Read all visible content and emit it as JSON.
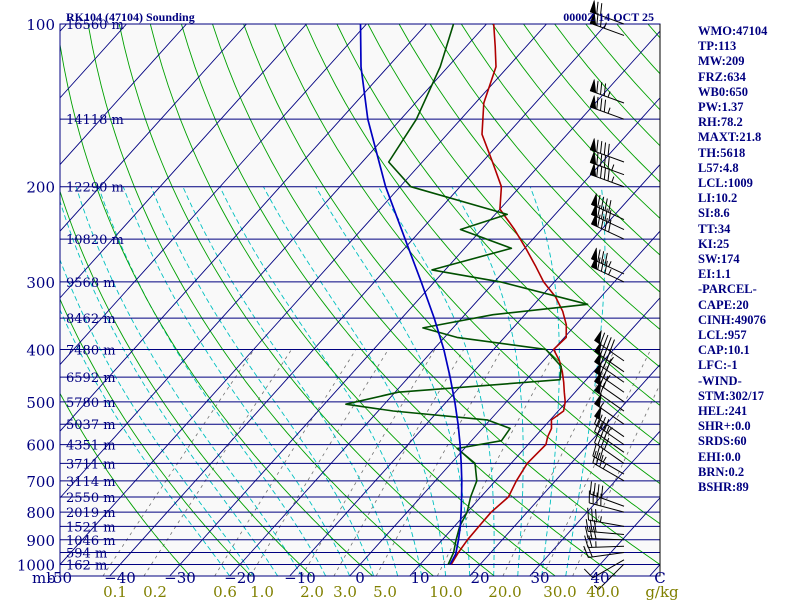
{
  "header": {
    "station_title": "RK104 (47104) Sounding",
    "valid_time": "0000Z 14 OCT 25"
  },
  "colors": {
    "background": "#f9f9f9",
    "isobar": "#000080",
    "isotherm": "#000080",
    "dry_adiabat": "#00a000",
    "moist_adiabat": "#00c0c0",
    "mixing_ratio": "#707070",
    "temperature": "#b00000",
    "dewpoint": "#005000",
    "parcel": "#0000c0",
    "label_left": "#000080",
    "label_bottom_g": "#808000"
  },
  "chart_data": {
    "type": "skew-t log-p",
    "pressure_unit": "mb",
    "pressure_ticks": [
      {
        "p": 100,
        "label": "100"
      },
      {
        "p": 200,
        "label": "200"
      },
      {
        "p": 300,
        "label": "300"
      },
      {
        "p": 400,
        "label": "400"
      },
      {
        "p": 500,
        "label": "500"
      },
      {
        "p": 600,
        "label": "600"
      },
      {
        "p": 700,
        "label": "700"
      },
      {
        "p": 800,
        "label": "800"
      },
      {
        "p": 900,
        "label": "900"
      },
      {
        "p": 1000,
        "label": "1000"
      }
    ],
    "height_labels": [
      {
        "p": 100,
        "label": "16560 m"
      },
      {
        "p": 150,
        "label": "14118 m"
      },
      {
        "p": 200,
        "label": "12290 m"
      },
      {
        "p": 250,
        "label": "10820 m"
      },
      {
        "p": 300,
        "label": "9568 m"
      },
      {
        "p": 350,
        "label": "8462 m"
      },
      {
        "p": 400,
        "label": "7480 m"
      },
      {
        "p": 450,
        "label": "6592 m"
      },
      {
        "p": 500,
        "label": "5780 m"
      },
      {
        "p": 550,
        "label": "5037 m"
      },
      {
        "p": 600,
        "label": "4351 m"
      },
      {
        "p": 650,
        "label": "3711 m"
      },
      {
        "p": 700,
        "label": "3114 m"
      },
      {
        "p": 750,
        "label": "2550 m"
      },
      {
        "p": 800,
        "label": "2019 m"
      },
      {
        "p": 850,
        "label": "1521 m"
      },
      {
        "p": 900,
        "label": "1046 m"
      },
      {
        "p": 950,
        "label": "594 m"
      },
      {
        "p": 1000,
        "label": "162 m"
      }
    ],
    "temperature_ticks": [
      {
        "t": -50,
        "label": "-50"
      },
      {
        "t": -40,
        "label": "−40"
      },
      {
        "t": -30,
        "label": "−30"
      },
      {
        "t": -20,
        "label": "−20"
      },
      {
        "t": -10,
        "label": "−10"
      },
      {
        "t": 0,
        "label": "0"
      },
      {
        "t": 10,
        "label": "10"
      },
      {
        "t": 20,
        "label": "20"
      },
      {
        "t": 30,
        "label": "30"
      },
      {
        "t": 40,
        "label": "40"
      },
      {
        "t": 50,
        "label": "C"
      }
    ],
    "mixing_ratio_labels": [
      {
        "w": 0.1,
        "label": "0.1"
      },
      {
        "w": 0.2,
        "label": "0.2"
      },
      {
        "w": 0.6,
        "label": "0.6"
      },
      {
        "w": 1.0,
        "label": "1.0"
      },
      {
        "w": 2.0,
        "label": "2.0"
      },
      {
        "w": 3.0,
        "label": "3.0"
      },
      {
        "w": 5.0,
        "label": "5.0"
      },
      {
        "w": 10.0,
        "label": "10.0"
      },
      {
        "w": 20.0,
        "label": "20.0"
      },
      {
        "w": 30.0,
        "label": "30.0"
      },
      {
        "w": 40.0,
        "label": "40.0"
      }
    ],
    "mixing_ratio_unit": "g/kg",
    "mb_label": "mb",
    "ylim": [
      100,
      1000
    ],
    "xlim": [
      -50,
      50
    ],
    "series": [
      {
        "name": "temperature",
        "points": [
          [
            1000,
            15.2
          ],
          [
            950,
            14.6
          ],
          [
            900,
            14.2
          ],
          [
            850,
            14.1
          ],
          [
            800,
            14.0
          ],
          [
            750,
            14.6
          ],
          [
            700,
            13.5
          ],
          [
            650,
            12.7
          ],
          [
            600,
            13.0
          ],
          [
            580,
            12.1
          ],
          [
            560,
            11.5
          ],
          [
            540,
            10.2
          ],
          [
            520,
            10.9
          ],
          [
            500,
            9.8
          ],
          [
            480,
            8.2
          ],
          [
            460,
            6.6
          ],
          [
            440,
            4.8
          ],
          [
            420,
            2.7
          ],
          [
            400,
            0.0
          ],
          [
            380,
            0.3
          ],
          [
            360,
            -1.6
          ],
          [
            340,
            -4.2
          ],
          [
            320,
            -7.5
          ],
          [
            300,
            -11.8
          ],
          [
            280,
            -15.6
          ],
          [
            260,
            -19.8
          ],
          [
            240,
            -24.5
          ],
          [
            220,
            -30.0
          ],
          [
            200,
            -33.1
          ],
          [
            180,
            -38.3
          ],
          [
            160,
            -44.2
          ],
          [
            140,
            -48.6
          ],
          [
            120,
            -52.0
          ],
          [
            110,
            -55.2
          ],
          [
            100,
            -58.8
          ]
        ]
      },
      {
        "name": "dewpoint",
        "points": [
          [
            1000,
            14.7
          ],
          [
            950,
            13.8
          ],
          [
            900,
            12.3
          ],
          [
            850,
            10.9
          ],
          [
            800,
            10.0
          ],
          [
            750,
            8.3
          ],
          [
            700,
            6.9
          ],
          [
            650,
            4.0
          ],
          [
            610,
            -1.2
          ],
          [
            590,
            5.0
          ],
          [
            560,
            4.6
          ],
          [
            540,
            -0.5
          ],
          [
            520,
            -17.5
          ],
          [
            505,
            -26.4
          ],
          [
            480,
            -19.5
          ],
          [
            455,
            5.6
          ],
          [
            430,
            3.8
          ],
          [
            400,
            -1.3
          ],
          [
            380,
            -17.9
          ],
          [
            365,
            -25.0
          ],
          [
            345,
            -15.3
          ],
          [
            330,
            -1.1
          ],
          [
            300,
            -19.0
          ],
          [
            285,
            -32.2
          ],
          [
            260,
            -22.2
          ],
          [
            240,
            -33.5
          ],
          [
            225,
            -28.0
          ],
          [
            200,
            -48.2
          ],
          [
            180,
            -55.6
          ],
          [
            150,
            -57.4
          ],
          [
            120,
            -61.3
          ],
          [
            100,
            -65.5
          ]
        ]
      },
      {
        "name": "parcel",
        "points": [
          [
            1000,
            15.0
          ],
          [
            957,
            14.4
          ],
          [
            900,
            12.7
          ],
          [
            850,
            11.0
          ],
          [
            800,
            9.0
          ],
          [
            750,
            6.8
          ],
          [
            700,
            4.4
          ],
          [
            650,
            1.7
          ],
          [
            600,
            -1.3
          ],
          [
            550,
            -4.7
          ],
          [
            500,
            -8.6
          ],
          [
            450,
            -13.1
          ],
          [
            400,
            -18.3
          ],
          [
            350,
            -24.6
          ],
          [
            300,
            -32.2
          ],
          [
            250,
            -41.3
          ],
          [
            200,
            -52.4
          ],
          [
            150,
            -65.5
          ],
          [
            120,
            -74.5
          ],
          [
            100,
            -81.0
          ]
        ]
      }
    ],
    "wind_barbs": [
      {
        "p": 998,
        "dir": 225,
        "spd": 5
      },
      {
        "p": 980,
        "dir": 240,
        "spd": 10
      },
      {
        "p": 950,
        "dir": 262,
        "spd": 20
      },
      {
        "p": 925,
        "dir": 268,
        "spd": 25
      },
      {
        "p": 900,
        "dir": 272,
        "spd": 30
      },
      {
        "p": 880,
        "dir": 275,
        "spd": 30
      },
      {
        "p": 850,
        "dir": 280,
        "spd": 35
      },
      {
        "p": 800,
        "dir": 285,
        "spd": 40
      },
      {
        "p": 780,
        "dir": 290,
        "spd": 40
      },
      {
        "p": 700,
        "dir": 300,
        "spd": 35
      },
      {
        "p": 680,
        "dir": 300,
        "spd": 35
      },
      {
        "p": 650,
        "dir": 305,
        "spd": 40
      },
      {
        "p": 620,
        "dir": 305,
        "spd": 40
      },
      {
        "p": 600,
        "dir": 305,
        "spd": 45
      },
      {
        "p": 580,
        "dir": 305,
        "spd": 50
      },
      {
        "p": 550,
        "dir": 305,
        "spd": 55
      },
      {
        "p": 520,
        "dir": 305,
        "spd": 60
      },
      {
        "p": 500,
        "dir": 305,
        "spd": 70
      },
      {
        "p": 480,
        "dir": 305,
        "spd": 75
      },
      {
        "p": 460,
        "dir": 305,
        "spd": 80
      },
      {
        "p": 440,
        "dir": 305,
        "spd": 85
      },
      {
        "p": 420,
        "dir": 305,
        "spd": 90
      },
      {
        "p": 300,
        "dir": 295,
        "spd": 85
      },
      {
        "p": 290,
        "dir": 295,
        "spd": 85
      },
      {
        "p": 250,
        "dir": 295,
        "spd": 90
      },
      {
        "p": 240,
        "dir": 295,
        "spd": 90
      },
      {
        "p": 230,
        "dir": 295,
        "spd": 90
      },
      {
        "p": 200,
        "dir": 290,
        "spd": 95
      },
      {
        "p": 190,
        "dir": 290,
        "spd": 95
      },
      {
        "p": 180,
        "dir": 290,
        "spd": 90
      },
      {
        "p": 150,
        "dir": 290,
        "spd": 85
      },
      {
        "p": 140,
        "dir": 290,
        "spd": 85
      },
      {
        "p": 105,
        "dir": 290,
        "spd": 75
      },
      {
        "p": 100,
        "dir": 290,
        "spd": 70
      }
    ]
  },
  "indices": [
    "WMO:47104",
    "TP:113",
    "MW:209",
    "FRZ:634",
    "WB0:650",
    "PW:1.37",
    "RH:78.2",
    "MAXT:21.8",
    "TH:5618",
    "L57:4.8",
    "LCL:1009",
    "LI:10.2",
    "SI:8.6",
    "TT:34",
    "KI:25",
    "SW:174",
    "EI:1.1",
    "-PARCEL-",
    "CAPE:20",
    "CINH:49076",
    "LCL:957",
    "CAP:10.1",
    "LFC:-1",
    "-WIND-",
    "STM:302/17",
    "HEL:241",
    "SHR+:0.0",
    "SRDS:60",
    "EHI:0.0",
    "BRN:0.2",
    "BSHR:89"
  ]
}
